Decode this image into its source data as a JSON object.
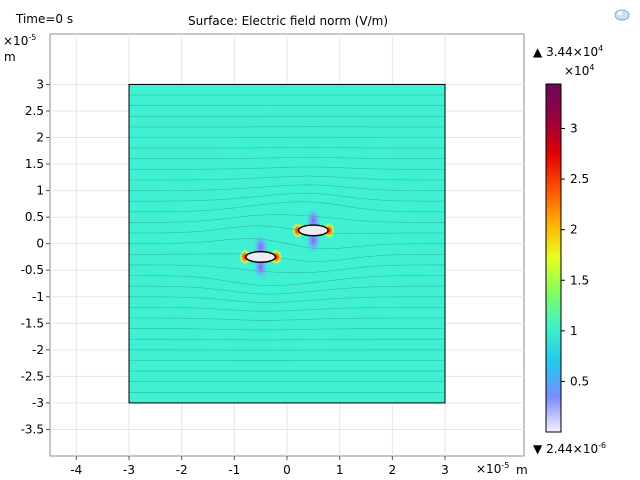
{
  "header": {
    "time_label": "Time=0 s",
    "title": "Surface: Electric field norm (V/m)"
  },
  "axis": {
    "y_exponent_base": "×10",
    "y_exponent_power": "-5",
    "y_unit": "m",
    "x_exponent_base": "×10",
    "x_exponent_power": "-5",
    "x_unit": "m"
  },
  "colorbar": {
    "max_marker": "▲",
    "max_mantissa": "3.44×10",
    "max_power": "4",
    "scale_base": "×10",
    "scale_power": "4",
    "min_marker": "▼",
    "min_mantissa": "2.44×10",
    "min_power": "-6",
    "ticks": [
      "3",
      "2.5",
      "2",
      "1.5",
      "1",
      "0.5"
    ],
    "tick_values": [
      3,
      2.5,
      2,
      1.5,
      1,
      0.5
    ],
    "range": [
      2.44e-10,
      3.44
    ],
    "colors": [
      "#f4f0ff",
      "#7a8cff",
      "#22c8f0",
      "#3ef0c8",
      "#7fff60",
      "#e8ff20",
      "#ffb000",
      "#ff5000",
      "#e00000",
      "#9a0040",
      "#6a0a5a"
    ]
  },
  "toolbar": {
    "pin_icon": "pin-icon"
  },
  "chart_data": {
    "type": "heatmap",
    "title": "Surface: Electric field norm (V/m)",
    "time": "Time=0 s",
    "x_ticks": [
      "-4",
      "-3",
      "-2",
      "-1",
      "0",
      "1",
      "2",
      "3"
    ],
    "x_tick_values": [
      -4,
      -3,
      -2,
      -1,
      0,
      1,
      2,
      3
    ],
    "y_ticks": [
      "3",
      "2.5",
      "2",
      "1.5",
      "1",
      "0.5",
      "0",
      "-0.5",
      "-1",
      "-1.5",
      "-2",
      "-2.5",
      "-3",
      "-3.5"
    ],
    "y_tick_values": [
      3,
      2.5,
      2,
      1.5,
      1,
      0.5,
      0,
      -0.5,
      -1,
      -1.5,
      -2,
      -2.5,
      -3,
      -3.5
    ],
    "xlim": [
      -4.5,
      4.5
    ],
    "ylim": [
      -4.0,
      3.95
    ],
    "domain": {
      "x": [
        -3,
        3
      ],
      "y": [
        -3,
        3
      ]
    },
    "background_field_value": 1.0,
    "inclusions": [
      {
        "cx": -0.5,
        "cy": -0.25,
        "rx": 0.28,
        "ry": 0.1
      },
      {
        "cx": 0.5,
        "cy": 0.25,
        "rx": 0.28,
        "ry": 0.1
      }
    ],
    "colorbar_range": [
      2.44e-10,
      3.44
    ],
    "units": "V/m",
    "colormap": "Rainbow"
  }
}
